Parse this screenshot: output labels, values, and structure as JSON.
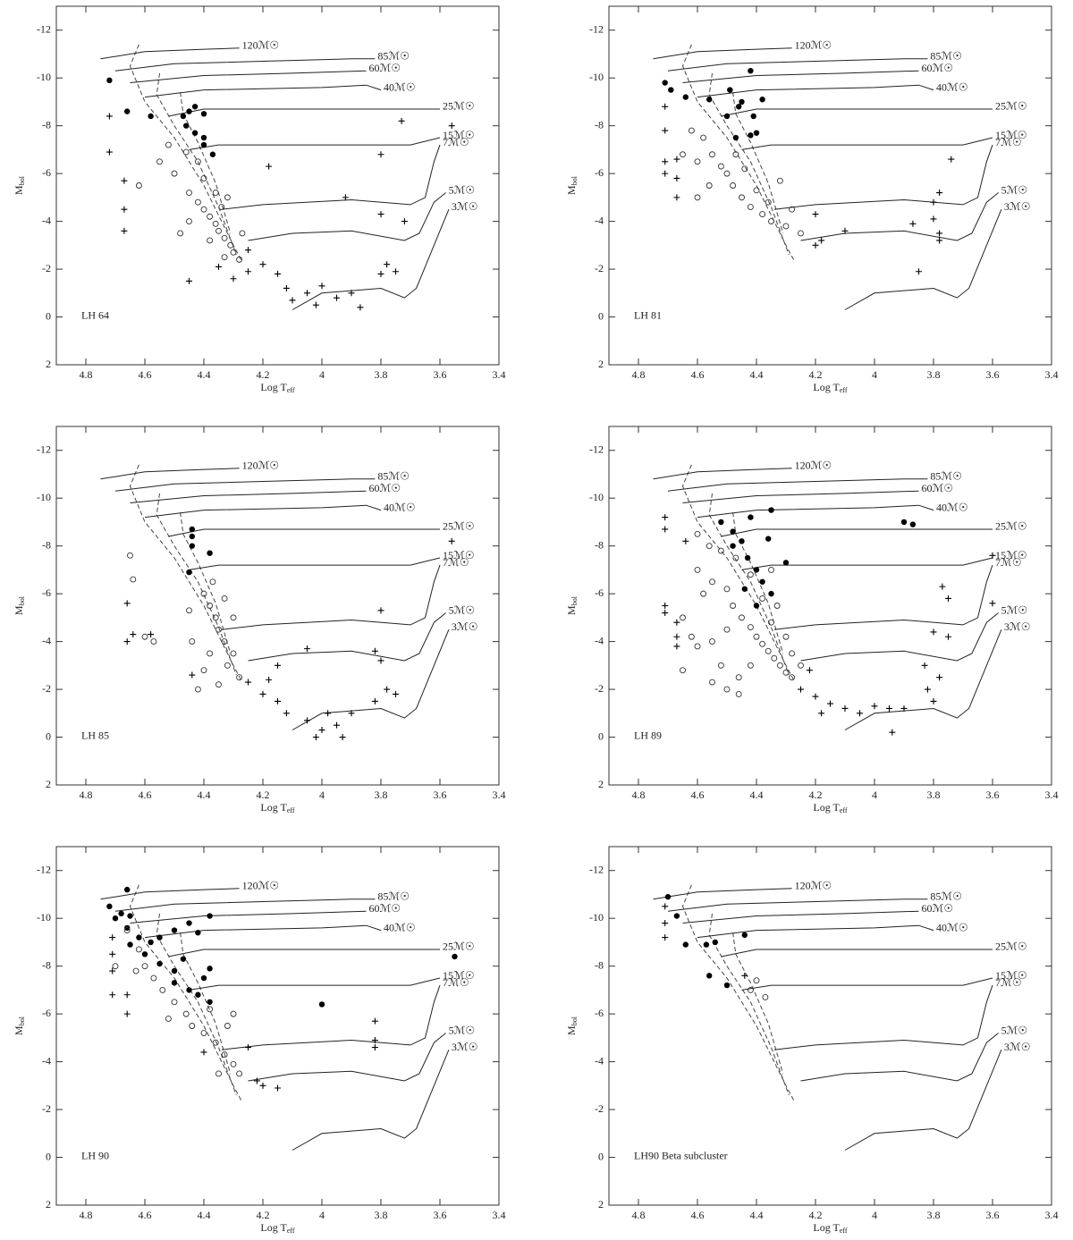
{
  "tracks": [
    {
      "label": "120ℳ☉",
      "x": [
        4.75,
        4.6,
        4.4,
        4.28
      ],
      "values": [
        -10.8,
        -11.1,
        -11.2,
        -11.25
      ]
    },
    {
      "label": "85ℳ☉",
      "x": [
        4.7,
        4.5,
        4.2,
        3.9,
        3.82
      ],
      "values": [
        -10.3,
        -10.6,
        -10.7,
        -10.8,
        -10.8
      ]
    },
    {
      "label": "60ℳ☉",
      "x": [
        4.65,
        4.4,
        4.1,
        3.85
      ],
      "values": [
        -9.8,
        -10.1,
        -10.2,
        -10.3
      ]
    },
    {
      "label": "40ℳ☉",
      "x": [
        4.6,
        4.4,
        4.0,
        3.85,
        3.8
      ],
      "values": [
        -9.2,
        -9.5,
        -9.6,
        -9.7,
        -9.5
      ]
    },
    {
      "label": "25ℳ☉",
      "x": [
        4.52,
        4.4,
        4.0,
        3.6
      ],
      "values": [
        -8.4,
        -8.7,
        -8.7,
        -8.7
      ]
    },
    {
      "label": "15ℳ☉",
      "x": [
        4.45,
        4.35,
        4.0,
        3.7,
        3.6
      ],
      "values": [
        -7.0,
        -7.2,
        -7.2,
        -7.2,
        -7.5
      ]
    },
    {
      "label": "7ℳ☉",
      "x": [
        4.34,
        4.2,
        3.9,
        3.7,
        3.65,
        3.62,
        3.6
      ],
      "values": [
        -4.5,
        -4.7,
        -4.9,
        -4.7,
        -5.0,
        -6.5,
        -7.2
      ]
    },
    {
      "label": "5ℳ☉",
      "x": [
        4.25,
        4.1,
        3.9,
        3.72,
        3.67,
        3.62,
        3.58
      ],
      "values": [
        -3.2,
        -3.5,
        -3.6,
        -3.2,
        -3.5,
        -4.8,
        -5.2
      ]
    },
    {
      "label": "3ℳ☉",
      "x": [
        4.1,
        4.0,
        3.8,
        3.72,
        3.68,
        3.62,
        3.57
      ],
      "values": [
        -0.3,
        -1.0,
        -1.2,
        -0.8,
        -1.2,
        -3.0,
        -4.5
      ]
    }
  ],
  "isochrones": [
    {
      "x": [
        4.62,
        4.65,
        4.6,
        4.5,
        4.4,
        4.3,
        4.27
      ],
      "values": [
        -11.4,
        -10.5,
        -9,
        -7.5,
        -5.5,
        -3,
        -2.3
      ]
    },
    {
      "x": [
        4.55,
        4.56,
        4.5,
        4.42,
        4.35,
        4.29
      ],
      "values": [
        -10.2,
        -9.3,
        -8,
        -6.5,
        -4.6,
        -2.6
      ]
    },
    {
      "x": [
        4.48,
        4.47,
        4.42,
        4.36,
        4.31
      ],
      "values": [
        -9.4,
        -8.5,
        -7.3,
        -5.6,
        -3.5
      ]
    }
  ],
  "chart_data": [
    {
      "type": "scatter",
      "panel_label": "LH 64",
      "xlabel": "Log T",
      "xlabel_sub": "eff",
      "ylabel": "M",
      "ylabel_sub": "bol",
      "xlim": [
        4.9,
        3.4
      ],
      "ylim": [
        2,
        -13
      ],
      "xticks": [
        4.8,
        4.6,
        4.4,
        4.2,
        4,
        3.8,
        3.6,
        3.4
      ],
      "yticks": [
        -12,
        -10,
        -8,
        -6,
        -4,
        -2,
        0,
        2
      ],
      "series": [
        {
          "marker": "filled",
          "x": [
            4.72,
            4.66,
            4.58,
            4.47,
            4.45,
            4.43,
            4.4,
            4.46,
            4.4,
            4.4,
            4.37,
            4.43
          ],
          "values": [
            -9.9,
            -8.6,
            -8.4,
            -8.4,
            -8.6,
            -8.8,
            -8.5,
            -8.0,
            -7.5,
            -7.2,
            -6.8,
            -7.7
          ]
        },
        {
          "marker": "open",
          "x": [
            4.62,
            4.55,
            4.5,
            4.45,
            4.42,
            4.4,
            4.38,
            4.36,
            4.35,
            4.33,
            4.31,
            4.3,
            4.28,
            4.45,
            4.48,
            4.4,
            4.36,
            4.34,
            4.32,
            4.38,
            4.27,
            4.33,
            4.42,
            4.46,
            4.52
          ],
          "values": [
            -5.5,
            -6.5,
            -6,
            -5.2,
            -4.8,
            -4.5,
            -4.2,
            -3.9,
            -3.6,
            -3.3,
            -3.0,
            -2.7,
            -2.4,
            -4.0,
            -3.5,
            -5.8,
            -5.2,
            -4.6,
            -5.0,
            -3.2,
            -3.5,
            -2.5,
            -6.5,
            -6.9,
            -7.2
          ]
        },
        {
          "marker": "cross",
          "x": [
            4.72,
            4.72,
            4.67,
            4.67,
            4.67,
            4.45,
            4.3,
            4.25,
            4.2,
            4.15,
            4.12,
            4.05,
            4.0,
            3.95,
            3.9,
            3.87,
            4.1,
            4.02,
            3.8,
            3.78,
            3.75,
            3.8,
            3.72,
            3.56,
            3.8,
            3.73,
            3.92,
            4.18,
            4.25,
            4.35
          ],
          "values": [
            -8.4,
            -6.9,
            -5.7,
            -4.5,
            -3.6,
            -1.5,
            -1.6,
            -1.9,
            -2.2,
            -1.8,
            -1.2,
            -1.0,
            -1.3,
            -0.8,
            -1.0,
            -0.4,
            -0.7,
            -0.5,
            -1.8,
            -2.2,
            -1.9,
            -4.3,
            -4.0,
            -8.0,
            -6.8,
            -8.2,
            -5.0,
            -6.3,
            -2.8,
            -2.1
          ]
        }
      ]
    },
    {
      "type": "scatter",
      "panel_label": "LH 81",
      "xlabel": "Log T",
      "xlabel_sub": "eff",
      "ylabel": "M",
      "ylabel_sub": "bol",
      "xlim": [
        4.9,
        3.4
      ],
      "ylim": [
        2,
        -13
      ],
      "xticks": [
        4.8,
        4.6,
        4.4,
        4.2,
        4,
        3.8,
        3.6,
        3.4
      ],
      "yticks": [
        -12,
        -10,
        -8,
        -6,
        -4,
        -2,
        0,
        2
      ],
      "series": [
        {
          "marker": "filled",
          "x": [
            4.71,
            4.69,
            4.64,
            4.56,
            4.49,
            4.42,
            4.46,
            4.45,
            4.5,
            4.41,
            4.38,
            4.4,
            4.42,
            4.47
          ],
          "values": [
            -9.8,
            -9.5,
            -9.2,
            -9.1,
            -9.5,
            -10.3,
            -8.8,
            -9.0,
            -8.4,
            -8.4,
            -9.1,
            -7.7,
            -7.6,
            -7.5
          ]
        },
        {
          "marker": "open",
          "x": [
            4.62,
            4.58,
            4.6,
            4.65,
            4.55,
            4.52,
            4.5,
            4.48,
            4.45,
            4.42,
            4.38,
            4.35,
            4.3,
            4.28,
            4.32,
            4.25,
            4.4,
            4.56,
            4.6,
            4.47,
            4.44,
            4.36
          ],
          "values": [
            -7.8,
            -7.5,
            -6.5,
            -6.8,
            -6.8,
            -6.3,
            -6.0,
            -5.5,
            -5.0,
            -4.6,
            -4.3,
            -4.0,
            -3.8,
            -4.5,
            -5.7,
            -3.5,
            -5.3,
            -5.5,
            -5.0,
            -6.8,
            -6.2,
            -4.8
          ]
        },
        {
          "marker": "cross",
          "x": [
            4.71,
            4.71,
            4.71,
            4.71,
            4.67,
            4.67,
            4.67,
            4.2,
            4.18,
            4.1,
            4.2,
            3.87,
            3.8,
            3.78,
            3.78,
            3.85,
            3.74,
            3.78,
            3.8
          ],
          "values": [
            -8.8,
            -7.8,
            -6.5,
            -6.0,
            -6.6,
            -5.8,
            -5.0,
            -4.3,
            -3.2,
            -3.6,
            -3.0,
            -3.9,
            -4.1,
            -3.5,
            -3.2,
            -1.9,
            -6.6,
            -5.2,
            -4.8
          ]
        }
      ]
    },
    {
      "type": "scatter",
      "panel_label": "LH 85",
      "xlabel": "Log T",
      "xlabel_sub": "eff",
      "ylabel": "M",
      "ylabel_sub": "bol",
      "xlim": [
        4.9,
        3.4
      ],
      "ylim": [
        2,
        -13
      ],
      "xticks": [
        4.8,
        4.6,
        4.4,
        4.2,
        4,
        3.8,
        3.6,
        3.4
      ],
      "yticks": [
        -12,
        -10,
        -8,
        -6,
        -4,
        -2,
        0,
        2
      ],
      "series": [
        {
          "marker": "filled",
          "x": [
            4.44,
            4.44,
            4.44,
            4.45,
            4.38
          ],
          "values": [
            -8.7,
            -8.4,
            -8.0,
            -6.9,
            -7.7
          ]
        },
        {
          "marker": "open",
          "x": [
            4.65,
            4.64,
            4.57,
            4.6,
            4.45,
            4.4,
            4.38,
            4.36,
            4.35,
            4.33,
            4.3,
            4.32,
            4.28,
            4.38,
            4.4,
            4.42,
            4.35,
            4.37,
            4.33,
            4.3,
            4.44
          ],
          "values": [
            -7.6,
            -6.6,
            -4.0,
            -4.2,
            -5.3,
            -6.0,
            -5.5,
            -5.0,
            -4.5,
            -4.0,
            -3.5,
            -3.0,
            -2.5,
            -3.5,
            -2.8,
            -2.0,
            -2.2,
            -6.5,
            -5.8,
            -5.0,
            -4.0
          ]
        },
        {
          "marker": "cross",
          "x": [
            4.66,
            4.66,
            4.64,
            4.58,
            4.44,
            4.25,
            4.2,
            4.15,
            4.18,
            4.12,
            4.05,
            4.0,
            3.98,
            3.95,
            4.02,
            3.93,
            3.9,
            3.82,
            3.78,
            3.75,
            3.8,
            3.82,
            3.8,
            3.56,
            4.05,
            4.15
          ],
          "values": [
            -5.6,
            -4.0,
            -4.3,
            -4.3,
            -2.6,
            -2.3,
            -1.8,
            -1.5,
            -2.4,
            -1.0,
            -0.7,
            -0.3,
            -1.0,
            -0.5,
            0,
            0,
            -1.0,
            -1.5,
            -2.0,
            -1.8,
            -5.3,
            -3.6,
            -3.2,
            -8.2,
            -3.7,
            -3.0
          ]
        }
      ]
    },
    {
      "type": "scatter",
      "panel_label": "LH 89",
      "xlabel": "Log T",
      "xlabel_sub": "eff",
      "ylabel": "M",
      "ylabel_sub": "bol",
      "xlim": [
        4.9,
        3.4
      ],
      "ylim": [
        2,
        -13
      ],
      "xticks": [
        4.8,
        4.6,
        4.4,
        4.2,
        4,
        3.8,
        3.6,
        3.4
      ],
      "yticks": [
        -12,
        -10,
        -8,
        -6,
        -4,
        -2,
        0,
        2
      ],
      "series": [
        {
          "marker": "filled",
          "x": [
            4.52,
            4.48,
            4.45,
            4.48,
            4.42,
            4.35,
            4.43,
            4.4,
            4.38,
            4.35,
            4.4,
            4.3,
            3.9,
            3.87,
            4.36,
            4.44
          ],
          "values": [
            -9.0,
            -8.6,
            -8.2,
            -8.0,
            -9.2,
            -9.5,
            -7.5,
            -7.0,
            -6.5,
            -6.0,
            -5.5,
            -7.3,
            -9.0,
            -8.9,
            -8.3,
            -6.2
          ]
        },
        {
          "marker": "open",
          "x": [
            4.6,
            4.56,
            4.6,
            4.58,
            4.55,
            4.5,
            4.48,
            4.45,
            4.42,
            4.4,
            4.38,
            4.36,
            4.34,
            4.32,
            4.3,
            4.28,
            4.5,
            4.55,
            4.6,
            4.62,
            4.52,
            4.46,
            4.42,
            4.35,
            4.33,
            4.3,
            4.28,
            4.25,
            4.65,
            4.55,
            4.5,
            4.46,
            4.38,
            4.42,
            4.47,
            4.52,
            4.35,
            4.65
          ],
          "values": [
            -8.5,
            -8.0,
            -7.0,
            -6.0,
            -6.5,
            -6.2,
            -5.5,
            -5.0,
            -4.6,
            -4.2,
            -3.9,
            -3.6,
            -3.3,
            -3.0,
            -2.7,
            -2.5,
            -4.5,
            -4.0,
            -3.8,
            -4.2,
            -3.0,
            -2.5,
            -3.0,
            -4.8,
            -5.5,
            -4.2,
            -3.5,
            -3.0,
            -2.8,
            -2.3,
            -2.0,
            -1.8,
            -5.8,
            -6.8,
            -7.5,
            -7.8,
            -7.0,
            -5.0
          ]
        },
        {
          "marker": "cross",
          "x": [
            4.71,
            4.71,
            4.71,
            4.71,
            4.67,
            4.67,
            4.67,
            4.64,
            4.25,
            4.2,
            4.15,
            4.1,
            4.05,
            4.0,
            3.95,
            3.9,
            3.94,
            4.18,
            4.22,
            3.82,
            3.8,
            3.78,
            3.83,
            3.8,
            3.75,
            3.77,
            3.75,
            3.6,
            3.6
          ],
          "values": [
            -9.2,
            -8.7,
            -5.5,
            -5.2,
            -4.8,
            -4.2,
            -3.8,
            -8.2,
            -2.0,
            -1.7,
            -1.4,
            -1.2,
            -1.0,
            -1.3,
            -1.2,
            -1.2,
            -0.2,
            -1.0,
            -2.8,
            -2.0,
            -1.5,
            -2.5,
            -3.0,
            -4.4,
            -4.2,
            -6.3,
            -5.8,
            -7.6,
            -5.6
          ]
        }
      ]
    },
    {
      "type": "scatter",
      "panel_label": "LH 90",
      "xlabel": "Log T",
      "xlabel_sub": "eff",
      "ylabel": "M",
      "ylabel_sub": "bol",
      "xlim": [
        4.9,
        3.4
      ],
      "ylim": [
        2,
        -13
      ],
      "xticks": [
        4.8,
        4.6,
        4.4,
        4.2,
        4,
        3.8,
        3.6,
        3.4
      ],
      "yticks": [
        -12,
        -10,
        -8,
        -6,
        -4,
        -2,
        0,
        2
      ],
      "series": [
        {
          "marker": "filled",
          "x": [
            4.72,
            4.68,
            4.66,
            4.7,
            4.65,
            4.66,
            4.62,
            4.58,
            4.55,
            4.5,
            4.45,
            4.42,
            4.38,
            4.65,
            4.6,
            4.55,
            4.5,
            4.5,
            4.45,
            4.42,
            4.4,
            4.38,
            4.38,
            3.55,
            4.0,
            4.47
          ],
          "values": [
            -10.5,
            -10.2,
            -11.2,
            -10.0,
            -10.1,
            -9.6,
            -9.2,
            -9.0,
            -9.2,
            -9.5,
            -9.8,
            -9.4,
            -10.1,
            -8.9,
            -8.5,
            -8.1,
            -7.8,
            -7.3,
            -7.0,
            -6.8,
            -7.5,
            -7.9,
            -6.5,
            -8.4,
            -6.4,
            -8.3
          ]
        },
        {
          "marker": "open",
          "x": [
            4.66,
            4.6,
            4.57,
            4.54,
            4.5,
            4.46,
            4.44,
            4.4,
            4.36,
            4.33,
            4.3,
            4.28,
            4.35,
            4.3,
            4.32,
            4.38,
            4.52,
            4.63,
            4.7,
            4.62
          ],
          "values": [
            -9.5,
            -8.0,
            -7.5,
            -7.0,
            -6.5,
            -6.0,
            -5.5,
            -5.2,
            -4.8,
            -4.3,
            -3.9,
            -3.5,
            -3.5,
            -6.0,
            -5.5,
            -6.2,
            -5.8,
            -7.8,
            -8.0,
            -8.7
          ]
        },
        {
          "marker": "cross",
          "x": [
            4.71,
            4.71,
            4.71,
            4.71,
            4.66,
            4.66,
            4.22,
            4.25,
            4.2,
            4.15,
            4.4,
            3.82,
            3.82,
            3.82
          ],
          "values": [
            -9.2,
            -8.5,
            -7.8,
            -6.8,
            -6.8,
            -6.0,
            -3.2,
            -4.6,
            -3.0,
            -2.9,
            -4.4,
            -5.7,
            -4.9,
            -4.6
          ]
        }
      ]
    },
    {
      "type": "scatter",
      "panel_label": "LH90 Beta subcluster",
      "xlabel": "Log T",
      "xlabel_sub": "eff",
      "ylabel": "M",
      "ylabel_sub": "bol",
      "xlim": [
        4.9,
        3.4
      ],
      "ylim": [
        2,
        -13
      ],
      "xticks": [
        4.8,
        4.6,
        4.4,
        4.2,
        4,
        3.8,
        3.6,
        3.4
      ],
      "yticks": [
        -12,
        -10,
        -8,
        -6,
        -4,
        -2,
        0,
        2
      ],
      "series": [
        {
          "marker": "filled",
          "x": [
            4.7,
            4.67,
            4.64,
            4.57,
            4.54,
            4.44,
            4.5,
            4.56
          ],
          "values": [
            -10.9,
            -10.1,
            -8.9,
            -8.9,
            -9.0,
            -9.3,
            -7.2,
            -7.6
          ]
        },
        {
          "marker": "open",
          "x": [
            4.4,
            4.37,
            4.42
          ],
          "values": [
            -7.4,
            -6.7,
            -7.0
          ]
        },
        {
          "marker": "cross",
          "x": [
            4.71,
            4.71,
            4.71,
            4.44
          ],
          "values": [
            -10.5,
            -9.8,
            -9.2,
            -7.6
          ]
        }
      ]
    }
  ]
}
